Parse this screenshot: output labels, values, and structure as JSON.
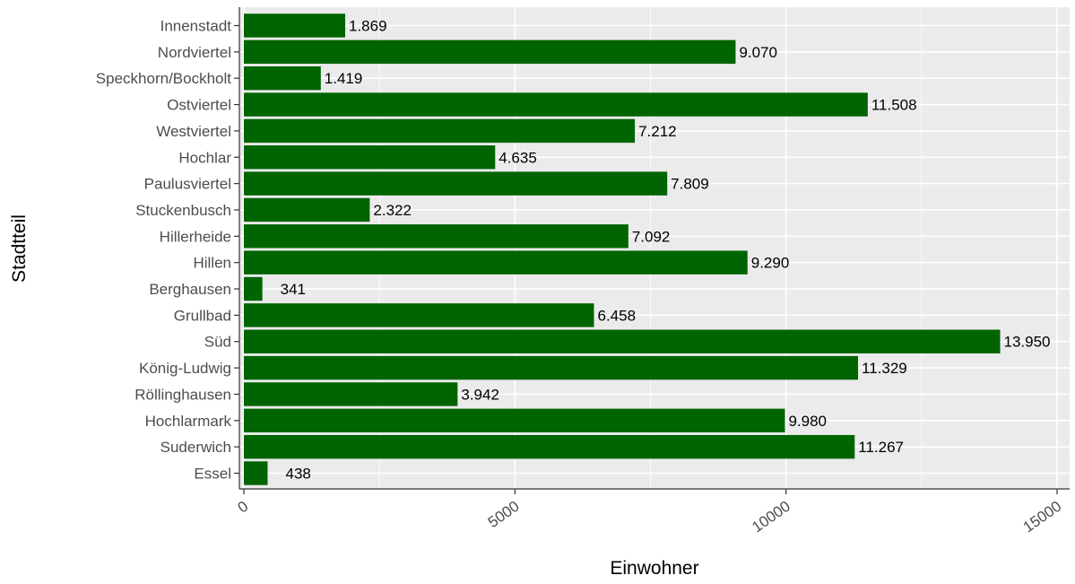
{
  "chart_data": {
    "type": "bar",
    "orientation": "horizontal",
    "categories": [
      "Innenstadt",
      "Nordviertel",
      "Speckhorn/Bockholt",
      "Ostviertel",
      "Westviertel",
      "Hochlar",
      "Paulusviertel",
      "Stuckenbusch",
      "Hillerheide",
      "Hillen",
      "Berghausen",
      "Grullbad",
      "Süd",
      "König-Ludwig",
      "Röllinghausen",
      "Hochlarmark",
      "Suderwich",
      "Essel"
    ],
    "values": [
      1869,
      9070,
      1419,
      11508,
      7212,
      4635,
      7809,
      2322,
      7092,
      9290,
      341,
      6458,
      13950,
      11329,
      3942,
      9980,
      11267,
      438
    ],
    "value_labels": [
      "1.869",
      "9.070",
      "1.419",
      "11.508",
      "7.212",
      "4.635",
      "7.809",
      "2.322",
      "7.092",
      "9.290",
      "341",
      "6.458",
      "13.950",
      "11.329",
      "3.942",
      "9.980",
      "11.267",
      "438"
    ],
    "xlabel": "Einwohner",
    "ylabel": "Stadtteil",
    "xlim": [
      0,
      15000
    ],
    "x_ticks": [
      0,
      5000,
      10000,
      15000
    ],
    "x_tick_labels": [
      "0",
      "5000",
      "10000",
      "15000"
    ],
    "grid": true,
    "bar_color": "#006400",
    "panel_background": "#ebebeb",
    "grid_color": "#ffffff"
  }
}
